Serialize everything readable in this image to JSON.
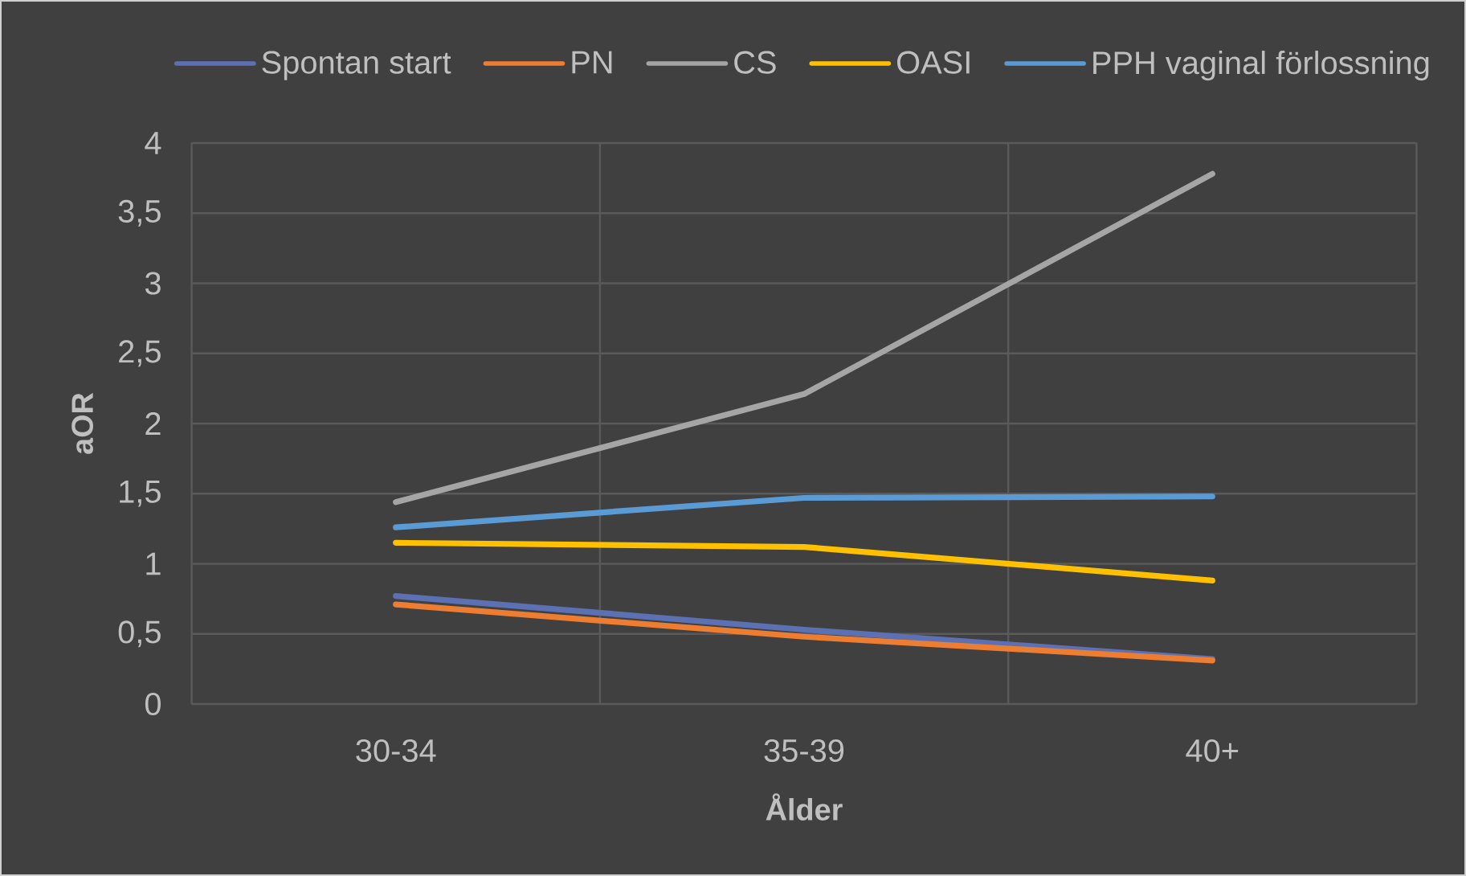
{
  "chart_data": {
    "type": "line",
    "categories": [
      "30-34",
      "35-39",
      "40+"
    ],
    "xlabel": "Ålder",
    "ylabel": "aOR",
    "ylim": [
      0,
      4
    ],
    "yticks": [
      0,
      {
        "value": 0.5,
        "label": "0,5"
      },
      1,
      {
        "value": 1.5,
        "label": "1,5"
      },
      2,
      {
        "value": 2.5,
        "label": "2,5"
      },
      3,
      {
        "value": 3.5,
        "label": "3,5"
      },
      4
    ],
    "grid": true,
    "legend": "top",
    "line_style": "solid",
    "series": [
      {
        "name": "Spontan start",
        "color": "#5b71b3",
        "values": [
          0.77,
          0.53,
          0.32
        ]
      },
      {
        "name": "PN",
        "color": "#ed7d31",
        "values": [
          0.71,
          0.48,
          0.31
        ]
      },
      {
        "name": "CS",
        "color": "#a5a5a5",
        "values": [
          1.44,
          2.21,
          3.78
        ]
      },
      {
        "name": "OASI",
        "color": "#ffc000",
        "values": [
          1.15,
          1.12,
          0.88
        ]
      },
      {
        "name": "PPH vaginal förlossning",
        "color": "#5b9bd5",
        "values": [
          1.26,
          1.47,
          1.48
        ]
      }
    ]
  }
}
